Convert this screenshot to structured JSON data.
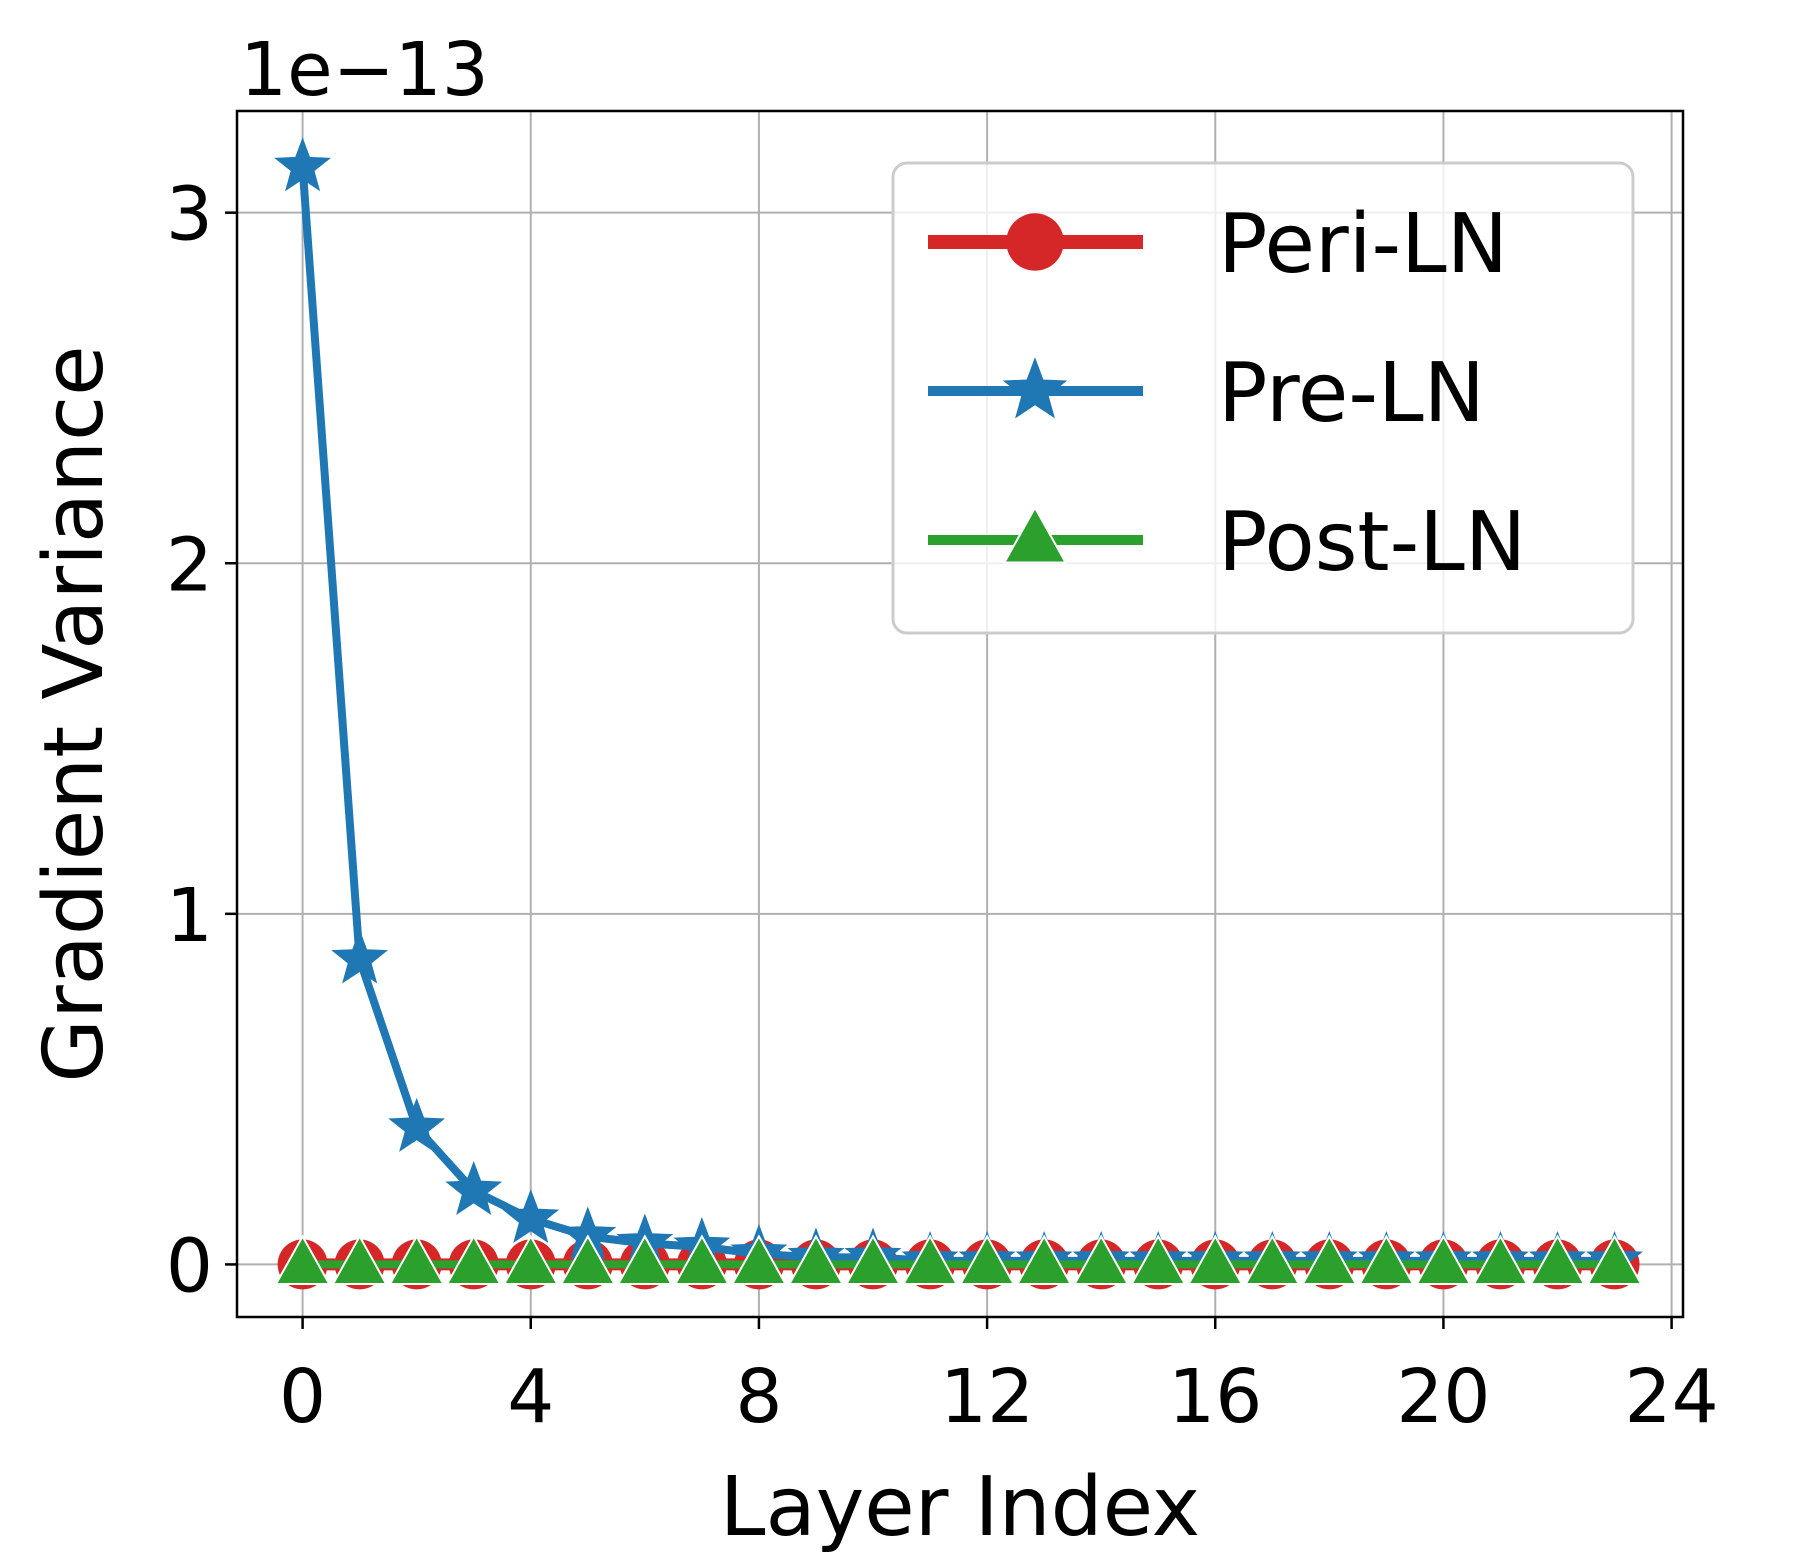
{
  "chart_data": {
    "type": "line",
    "xlabel": "Layer Index",
    "ylabel": "Gradient Variance",
    "y_exponent_label": "1e−13",
    "xlim": [
      -1.15,
      24.2
    ],
    "ylim": [
      -0.15,
      3.29
    ],
    "x_ticks": [
      0,
      4,
      8,
      12,
      16,
      20,
      24
    ],
    "y_ticks": [
      0,
      1,
      2,
      3
    ],
    "grid": true,
    "legend_position": "top-right",
    "x": [
      0,
      1,
      2,
      3,
      4,
      5,
      6,
      7,
      8,
      9,
      10,
      11,
      12,
      13,
      14,
      15,
      16,
      17,
      18,
      19,
      20,
      21,
      22,
      23
    ],
    "series": [
      {
        "name": "Peri-LN",
        "color": "#d62728",
        "marker": "circle",
        "values": [
          0,
          0,
          0,
          0,
          0,
          0,
          0,
          0,
          0,
          0,
          0,
          0,
          0,
          0,
          0,
          0,
          0,
          0,
          0,
          0,
          0,
          0,
          0,
          0
        ]
      },
      {
        "name": "Pre-LN",
        "color": "#1f77b4",
        "marker": "star",
        "values": [
          3.13,
          0.87,
          0.39,
          0.21,
          0.13,
          0.08,
          0.06,
          0.05,
          0.03,
          0.02,
          0.02,
          0.01,
          0.01,
          0.01,
          0.01,
          0.01,
          0.01,
          0.01,
          0.01,
          0.01,
          0.01,
          0.01,
          0.01,
          0.01
        ]
      },
      {
        "name": "Post-LN",
        "color": "#2ca02c",
        "marker": "triangle",
        "values": [
          0,
          0,
          0,
          0,
          0,
          0,
          0,
          0,
          0,
          0,
          0,
          0,
          0,
          0,
          0,
          0,
          0,
          0,
          0,
          0,
          0,
          0,
          0,
          0
        ]
      }
    ]
  }
}
